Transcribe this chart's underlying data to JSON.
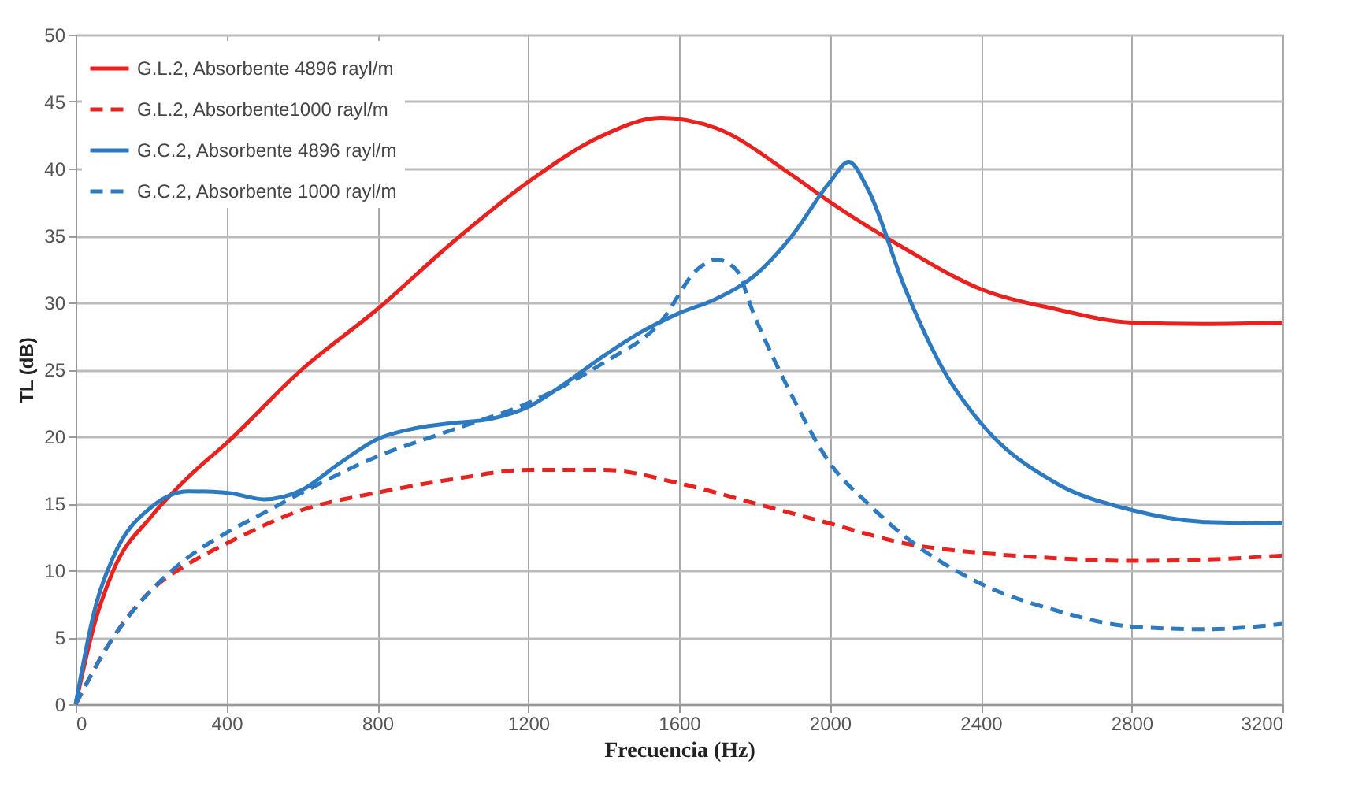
{
  "chart_data": {
    "type": "line",
    "xlabel": "Frecuencia (Hz)",
    "ylabel": "TL (dB)",
    "xlim": [
      0,
      3200
    ],
    "xticks": [
      0,
      400,
      800,
      1200,
      1600,
      2000,
      2400,
      2800,
      3200
    ],
    "ylim": [
      0,
      50
    ],
    "yticks": [
      0,
      5,
      10,
      15,
      20,
      25,
      30,
      35,
      40,
      45,
      50
    ],
    "grid": true,
    "legend": "top left",
    "marker": "none",
    "series": [
      {
        "name": "G.L.2, Absorbente 4896 rayl/m",
        "color": "#e8231f",
        "line_style": "solid",
        "x": [
          0,
          50,
          100,
          200,
          300,
          400,
          600,
          800,
          1000,
          1200,
          1400,
          1550,
          1700,
          1900,
          2000,
          2200,
          2400,
          2600,
          2800,
          3000,
          3200
        ],
        "values": [
          0,
          6,
          10,
          14,
          17,
          19.5,
          25,
          29.5,
          34.5,
          39,
          42.5,
          43.8,
          43,
          39.5,
          37.5,
          34,
          31,
          29.5,
          28.5,
          28.4,
          28.5
        ]
      },
      {
        "name": "G.L.2, Absorbente1000 rayl/m",
        "color": "#e8231f",
        "line_style": "dashed",
        "x": [
          0,
          100,
          200,
          300,
          400,
          600,
          800,
          1000,
          1200,
          1400,
          1600,
          1800,
          2000,
          2200,
          2400,
          2600,
          2800,
          3000,
          3200
        ],
        "values": [
          0,
          5,
          8.5,
          10.5,
          12,
          14.5,
          15.8,
          16.8,
          17.5,
          17.5,
          16.5,
          15,
          13.5,
          12,
          11.3,
          10.9,
          10.7,
          10.8,
          11.1
        ]
      },
      {
        "name": "G.C.2, Absorbente 4896 rayl/m",
        "color": "#2e7ac0",
        "line_style": "solid",
        "x": [
          0,
          50,
          100,
          200,
          300,
          400,
          500,
          600,
          700,
          800,
          900,
          1000,
          1100,
          1200,
          1300,
          1400,
          1500,
          1600,
          1700,
          1800,
          1900,
          2000,
          2050,
          2100,
          2200,
          2300,
          2400,
          2600,
          2800,
          3000,
          3200
        ],
        "values": [
          0,
          7,
          11,
          14.7,
          15.9,
          15.8,
          15.3,
          16,
          18,
          19.8,
          20.6,
          21,
          21.3,
          22.2,
          24,
          26,
          27.8,
          29.2,
          30.3,
          32,
          35,
          39,
          40.5,
          38.5,
          31,
          25,
          21,
          16.5,
          14.5,
          13.6,
          13.5
        ]
      },
      {
        "name": "G.C.2, Absorbente 1000 rayl/m",
        "color": "#2e7ac0",
        "line_style": "dashed",
        "x": [
          0,
          100,
          200,
          300,
          400,
          500,
          600,
          800,
          1000,
          1200,
          1400,
          1550,
          1650,
          1700,
          1750,
          1800,
          1900,
          2000,
          2100,
          2200,
          2400,
          2600,
          2800,
          3000,
          3200
        ],
        "values": [
          0,
          5,
          8.5,
          11,
          12.8,
          14.3,
          15.8,
          18.5,
          20.5,
          22.5,
          25.5,
          28.5,
          32.5,
          33.2,
          32.5,
          29,
          23,
          18,
          15,
          12.5,
          9,
          7,
          5.8,
          5.6,
          6
        ]
      }
    ]
  }
}
